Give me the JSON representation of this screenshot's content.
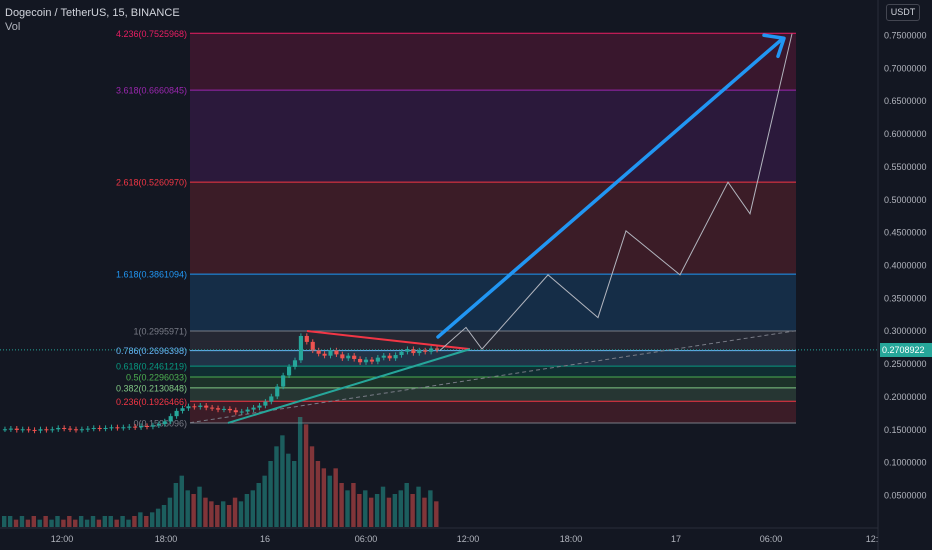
{
  "header": {
    "symbol_line": "Dogecoin / TetherUS, 15, BINANCE",
    "volume_label": "Vol"
  },
  "currency_button": "USDT",
  "current_price": "0.2708922",
  "fib_levels": [
    {
      "label": "0(0.1596096)",
      "price": 0.1596096,
      "color": "#787b86"
    },
    {
      "label": "0.236(0.1926466)",
      "price": 0.1926466,
      "color": "#f23645"
    },
    {
      "label": "0.382(0.2130848)",
      "price": 0.2130848,
      "color": "#81c784"
    },
    {
      "label": "0.5(0.2296033)",
      "price": 0.2296033,
      "color": "#4caf50"
    },
    {
      "label": "0.618(0.2461219)",
      "price": 0.2461219,
      "color": "#089981"
    },
    {
      "label": "0.786(0.2696398)",
      "price": 0.2696398,
      "color": "#64b5f6"
    },
    {
      "label": "1(0.2995971)",
      "price": 0.2995971,
      "color": "#787b86"
    },
    {
      "label": "1.618(0.3861094)",
      "price": 0.3861094,
      "color": "#2196f3"
    },
    {
      "label": "2.618(0.5260970)",
      "price": 0.526097,
      "color": "#f23645"
    },
    {
      "label": "3.618(0.6660845)",
      "price": 0.6660845,
      "color": "#9c27b0"
    },
    {
      "label": "4.236(0.7525968)",
      "price": 0.7525968,
      "color": "#e91e63"
    }
  ],
  "price_ticks": [
    "0.7500000",
    "0.7000000",
    "0.6500000",
    "0.6000000",
    "0.5500000",
    "0.5000000",
    "0.4500000",
    "0.4000000",
    "0.3500000",
    "0.3000000",
    "0.2500000",
    "0.2000000",
    "0.1500000",
    "0.1000000",
    "0.0500000"
  ],
  "price_tick_values": [
    0.75,
    0.7,
    0.65,
    0.6,
    0.55,
    0.5,
    0.45,
    0.4,
    0.35,
    0.3,
    0.25,
    0.2,
    0.15,
    0.1,
    0.05
  ],
  "time_ticks": [
    "12:00",
    "18:00",
    "16",
    "06:00",
    "12:00",
    "18:00",
    "17",
    "06:00",
    "12:"
  ],
  "chart_data": {
    "type": "candlestick",
    "symbol": "Dogecoin / TetherUS",
    "interval": "15",
    "exchange": "BINANCE",
    "y_axis_range": [
      0.04,
      0.79
    ],
    "ohlc_close_path": [
      0.15,
      0.151,
      0.149,
      0.15,
      0.149,
      0.148,
      0.15,
      0.149,
      0.15,
      0.152,
      0.151,
      0.15,
      0.149,
      0.15,
      0.151,
      0.152,
      0.151,
      0.152,
      0.153,
      0.152,
      0.153,
      0.154,
      0.153,
      0.155,
      0.154,
      0.156,
      0.158,
      0.162,
      0.17,
      0.178,
      0.182,
      0.185,
      0.184,
      0.186,
      0.183,
      0.182,
      0.18,
      0.181,
      0.179,
      0.176,
      0.177,
      0.18,
      0.183,
      0.186,
      0.192,
      0.2,
      0.215,
      0.232,
      0.245,
      0.255,
      0.292,
      0.283,
      0.27,
      0.265,
      0.262,
      0.27,
      0.264,
      0.258,
      0.262,
      0.257,
      0.252,
      0.256,
      0.253,
      0.259,
      0.262,
      0.258,
      0.263,
      0.268,
      0.272,
      0.266,
      0.27,
      0.268,
      0.273,
      0.271
    ],
    "projection_path": [
      {
        "t": "",
        "price": 0.27
      },
      {
        "t": "",
        "price": 0.305
      },
      {
        "t": "12:00",
        "price": 0.272
      },
      {
        "t": "",
        "price": 0.385
      },
      {
        "t": "",
        "price": 0.32
      },
      {
        "t": "",
        "price": 0.452
      },
      {
        "t": "",
        "price": 0.385
      },
      {
        "t": "",
        "price": 0.526
      },
      {
        "t": "",
        "price": 0.478
      },
      {
        "t": "06:00",
        "price": 0.752
      }
    ],
    "volume": [
      3,
      3,
      2,
      3,
      2,
      3,
      2,
      3,
      2,
      3,
      2,
      3,
      2,
      3,
      2,
      3,
      2,
      3,
      3,
      2,
      3,
      2,
      3,
      4,
      3,
      4,
      5,
      6,
      8,
      12,
      14,
      10,
      9,
      11,
      8,
      7,
      6,
      7,
      6,
      8,
      7,
      9,
      10,
      12,
      14,
      18,
      22,
      25,
      20,
      18,
      30,
      28,
      22,
      18,
      16,
      14,
      16,
      12,
      10,
      12,
      9,
      10,
      8,
      9,
      11,
      8,
      9,
      10,
      12,
      9,
      11,
      8,
      10,
      7
    ]
  }
}
